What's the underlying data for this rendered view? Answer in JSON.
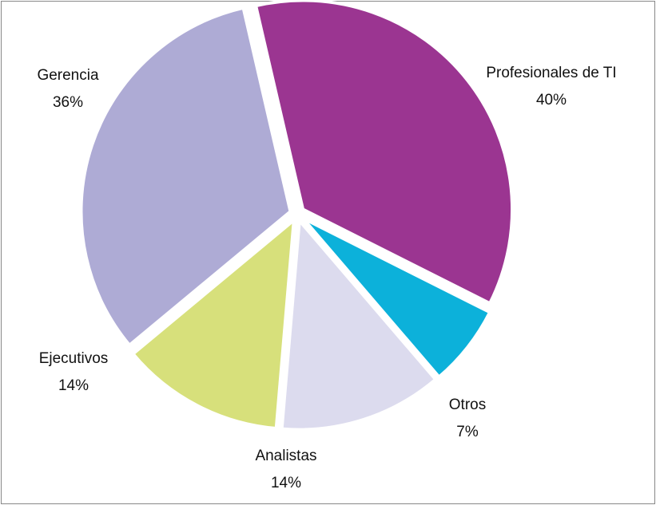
{
  "chart_data": {
    "type": "pie",
    "categories": [
      "Profesionales de TI",
      "Otros",
      "Analistas",
      "Ejecutivos",
      "Gerencia"
    ],
    "values": [
      40,
      7,
      14,
      14,
      36
    ],
    "value_labels": [
      "40%",
      "7%",
      "14%",
      "14%",
      "36%"
    ],
    "colors": [
      "#9b3591",
      "#0cb1da",
      "#dcdbee",
      "#d7e07b",
      "#aeabd5"
    ]
  }
}
